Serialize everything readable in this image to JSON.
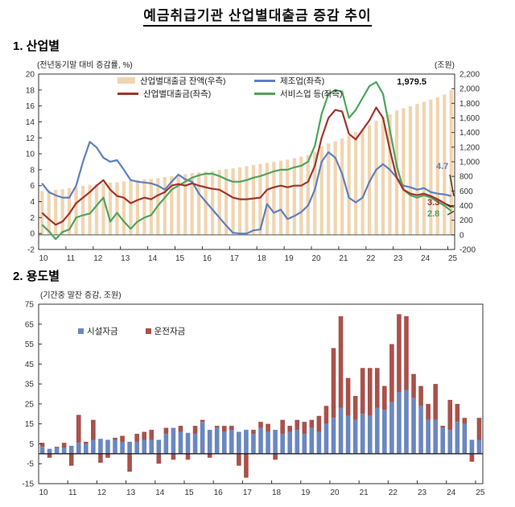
{
  "page": {
    "title": "예금취급기관 산업별대출금 증감 추이"
  },
  "section1": {
    "heading": "1. 산업별",
    "unit_left": "(전년동기말 대비 증감률, %)",
    "unit_right": "(조원)",
    "legend": {
      "bars": "산업별대출금 잔액(우측)",
      "total": "산업별대출금(좌측)",
      "mfg": "제조업(좌측)",
      "services": "서비스업 등(좌측)"
    },
    "annotations": {
      "final_balance": "1,979.5",
      "mfg_end": "4.7",
      "total_end": "3.3",
      "services_end": "2.8"
    }
  },
  "section2": {
    "heading": "2. 용도별",
    "unit": "(기간중 말잔 증감, 조원)",
    "legend": {
      "facility": "시설자금",
      "operating": "운전자금"
    }
  },
  "colors": {
    "balance_bar": "#F0D5B0",
    "total_line": "#A0342C",
    "mfg_line": "#5F7FBF",
    "services_line": "#4FA45B",
    "facility_bar": "#6A87BF",
    "operating_bar": "#A8514A",
    "axis": "#333333"
  },
  "chart_data": [
    {
      "type": "bar",
      "subtype": "bar-line-combo",
      "x_unit": "year (quarterly points, 2010Q1-2025Q1)",
      "x_ticks": [
        [
          0,
          "10"
        ],
        [
          4,
          "11"
        ],
        [
          8,
          "12"
        ],
        [
          12,
          "13"
        ],
        [
          16,
          "14"
        ],
        [
          20,
          "15"
        ],
        [
          24,
          "16"
        ],
        [
          28,
          "17"
        ],
        [
          32,
          "18"
        ],
        [
          36,
          "19"
        ],
        [
          40,
          "20"
        ],
        [
          44,
          "21"
        ],
        [
          48,
          "22"
        ],
        [
          52,
          "23"
        ],
        [
          56,
          "24"
        ],
        [
          60,
          "25"
        ]
      ],
      "left_axis": {
        "min": -2,
        "max": 20,
        "ticks": [
          [
            20,
            "20"
          ],
          [
            18,
            "18"
          ],
          [
            16,
            "16"
          ],
          [
            14,
            "14"
          ],
          [
            12,
            "12"
          ],
          [
            10,
            "10"
          ],
          [
            8,
            "8"
          ],
          [
            6,
            "6"
          ],
          [
            4,
            "4"
          ],
          [
            2,
            "2"
          ],
          [
            0,
            "0"
          ],
          [
            -2,
            "-2"
          ]
        ]
      },
      "right_axis": {
        "min": -200,
        "max": 2200,
        "ticks": [
          [
            2200,
            "2,200"
          ],
          [
            2000,
            "2,000"
          ],
          [
            1800,
            "1,800"
          ],
          [
            1600,
            "1,600"
          ],
          [
            1400,
            "1,400"
          ],
          [
            1200,
            "1,200"
          ],
          [
            1000,
            "1,000"
          ],
          [
            800,
            "800"
          ],
          [
            600,
            "600"
          ],
          [
            400,
            "400"
          ],
          [
            200,
            "200"
          ],
          [
            0,
            "0"
          ],
          [
            -200,
            "-200"
          ]
        ]
      },
      "bars": {
        "name": "산업별대출금 잔액(우측)",
        "axis": "right",
        "end_label": "1,979.5",
        "values": [
          600,
          610,
          615,
          625,
          640,
          655,
          670,
          685,
          695,
          705,
          715,
          720,
          730,
          740,
          750,
          760,
          765,
          775,
          790,
          800,
          815,
          830,
          845,
          855,
          865,
          875,
          890,
          900,
          910,
          925,
          940,
          955,
          970,
          985,
          1000,
          1015,
          1030,
          1050,
          1070,
          1090,
          1140,
          1210,
          1250,
          1280,
          1320,
          1360,
          1405,
          1440,
          1500,
          1560,
          1610,
          1650,
          1700,
          1730,
          1760,
          1790,
          1820,
          1850,
          1880,
          1920,
          1979.5
        ]
      },
      "series": [
        {
          "name": "제조업(좌측)",
          "axis": "left",
          "end_label": "4.7",
          "values": [
            6.3,
            5.2,
            4.8,
            4.5,
            4.5,
            6.0,
            9.0,
            11.5,
            10.8,
            9.5,
            9.0,
            9.2,
            8.0,
            6.7,
            6.5,
            6.4,
            6.3,
            6.0,
            5.5,
            6.5,
            7.4,
            6.8,
            6.5,
            5.0,
            4.0,
            3.0,
            2.0,
            1.0,
            0.1,
            0.0,
            0.0,
            0.4,
            0.5,
            3.7,
            2.6,
            3.0,
            1.8,
            2.2,
            2.7,
            3.5,
            5.5,
            9.0,
            10.2,
            9.5,
            7.5,
            4.5,
            3.9,
            4.5,
            6.5,
            8.0,
            8.7,
            8.0,
            7.0,
            6.0,
            5.8,
            5.5,
            5.7,
            5.2,
            5.0,
            4.9,
            4.7
          ]
        },
        {
          "name": "서비스업 등(좌측)",
          "axis": "left",
          "end_label": "2.8",
          "values": [
            1.1,
            0.3,
            -0.7,
            0.2,
            0.5,
            2.0,
            2.3,
            2.5,
            3.5,
            4.5,
            1.5,
            2.6,
            1.5,
            0.6,
            1.5,
            2.0,
            2.3,
            3.5,
            4.5,
            5.5,
            6.0,
            6.5,
            7.0,
            7.3,
            7.5,
            7.5,
            7.2,
            6.8,
            6.5,
            6.5,
            6.7,
            7.0,
            7.2,
            7.5,
            7.8,
            8.0,
            8.0,
            8.3,
            8.5,
            9.0,
            11.0,
            15.0,
            17.5,
            18.0,
            17.8,
            14.5,
            15.5,
            17.0,
            18.5,
            19.0,
            17.5,
            13.0,
            8.5,
            5.5,
            4.8,
            4.5,
            4.8,
            4.5,
            4.0,
            3.5,
            2.8
          ]
        },
        {
          "name": "산업별대출금(좌측)",
          "axis": "left",
          "end_label": "3.3",
          "values": [
            2.6,
            1.8,
            1.1,
            1.5,
            2.5,
            3.8,
            4.5,
            5.2,
            6.0,
            6.7,
            5.5,
            4.7,
            4.5,
            3.8,
            4.2,
            4.5,
            4.3,
            4.8,
            5.2,
            6.0,
            6.2,
            6.0,
            6.3,
            6.0,
            5.8,
            5.6,
            5.5,
            5.0,
            4.5,
            4.3,
            4.3,
            4.4,
            4.5,
            5.5,
            5.8,
            6.0,
            5.8,
            6.0,
            6.0,
            6.5,
            8.5,
            12.0,
            14.5,
            15.5,
            15.3,
            12.5,
            11.8,
            13.0,
            14.2,
            15.8,
            14.5,
            10.5,
            7.0,
            5.5,
            5.0,
            4.8,
            5.0,
            4.7,
            4.3,
            3.8,
            3.3
          ]
        }
      ]
    },
    {
      "type": "bar",
      "subtype": "stacked-bar",
      "x_unit": "year (quarterly bars, 2010Q1-2025Q1)",
      "x_ticks": [
        [
          0,
          "10"
        ],
        [
          4,
          "11"
        ],
        [
          8,
          "12"
        ],
        [
          12,
          "13"
        ],
        [
          16,
          "14"
        ],
        [
          20,
          "15"
        ],
        [
          24,
          "16"
        ],
        [
          28,
          "17"
        ],
        [
          32,
          "18"
        ],
        [
          36,
          "19"
        ],
        [
          40,
          "20"
        ],
        [
          44,
          "21"
        ],
        [
          48,
          "22"
        ],
        [
          52,
          "23"
        ],
        [
          56,
          "24"
        ],
        [
          60,
          "25"
        ]
      ],
      "axis": {
        "min": -15,
        "max": 75,
        "ticks": [
          [
            75,
            "75"
          ],
          [
            65,
            "65"
          ],
          [
            55,
            "55"
          ],
          [
            45,
            "45"
          ],
          [
            35,
            "35"
          ],
          [
            25,
            "25"
          ],
          [
            15,
            "15"
          ],
          [
            5,
            "5"
          ],
          [
            -5,
            "-5"
          ],
          [
            -15,
            "-15"
          ]
        ]
      },
      "series": [
        {
          "name": "시설자금",
          "values": [
            3.5,
            2.5,
            3,
            3,
            4,
            5.5,
            5,
            7,
            7.5,
            7,
            7,
            6,
            6,
            6,
            7,
            7,
            7,
            10,
            13,
            11,
            10.5,
            10,
            16,
            12,
            13,
            11,
            12,
            11,
            12,
            10,
            13,
            11,
            12,
            10,
            11,
            12,
            10,
            13,
            11,
            15,
            18,
            23,
            19,
            17,
            20,
            19,
            23,
            22,
            26,
            31,
            32,
            28,
            24,
            17,
            17,
            13,
            12,
            16,
            15,
            7,
            7
          ]
        },
        {
          "name": "운전자금",
          "values": [
            2,
            -2,
            0.5,
            2.5,
            -6,
            14,
            1,
            10,
            -4.5,
            -2,
            1,
            3,
            -9,
            4,
            4,
            5,
            -5,
            3,
            -3,
            3,
            -3,
            4,
            1,
            -2,
            1,
            3,
            2,
            -6,
            -12,
            2,
            3,
            4,
            -3,
            7,
            3,
            5,
            6,
            4,
            8,
            9,
            35,
            46,
            19,
            12,
            23,
            24,
            20,
            12,
            29,
            39,
            37,
            12,
            10,
            8,
            18,
            1,
            15,
            9,
            3,
            -4,
            11
          ]
        }
      ]
    }
  ]
}
